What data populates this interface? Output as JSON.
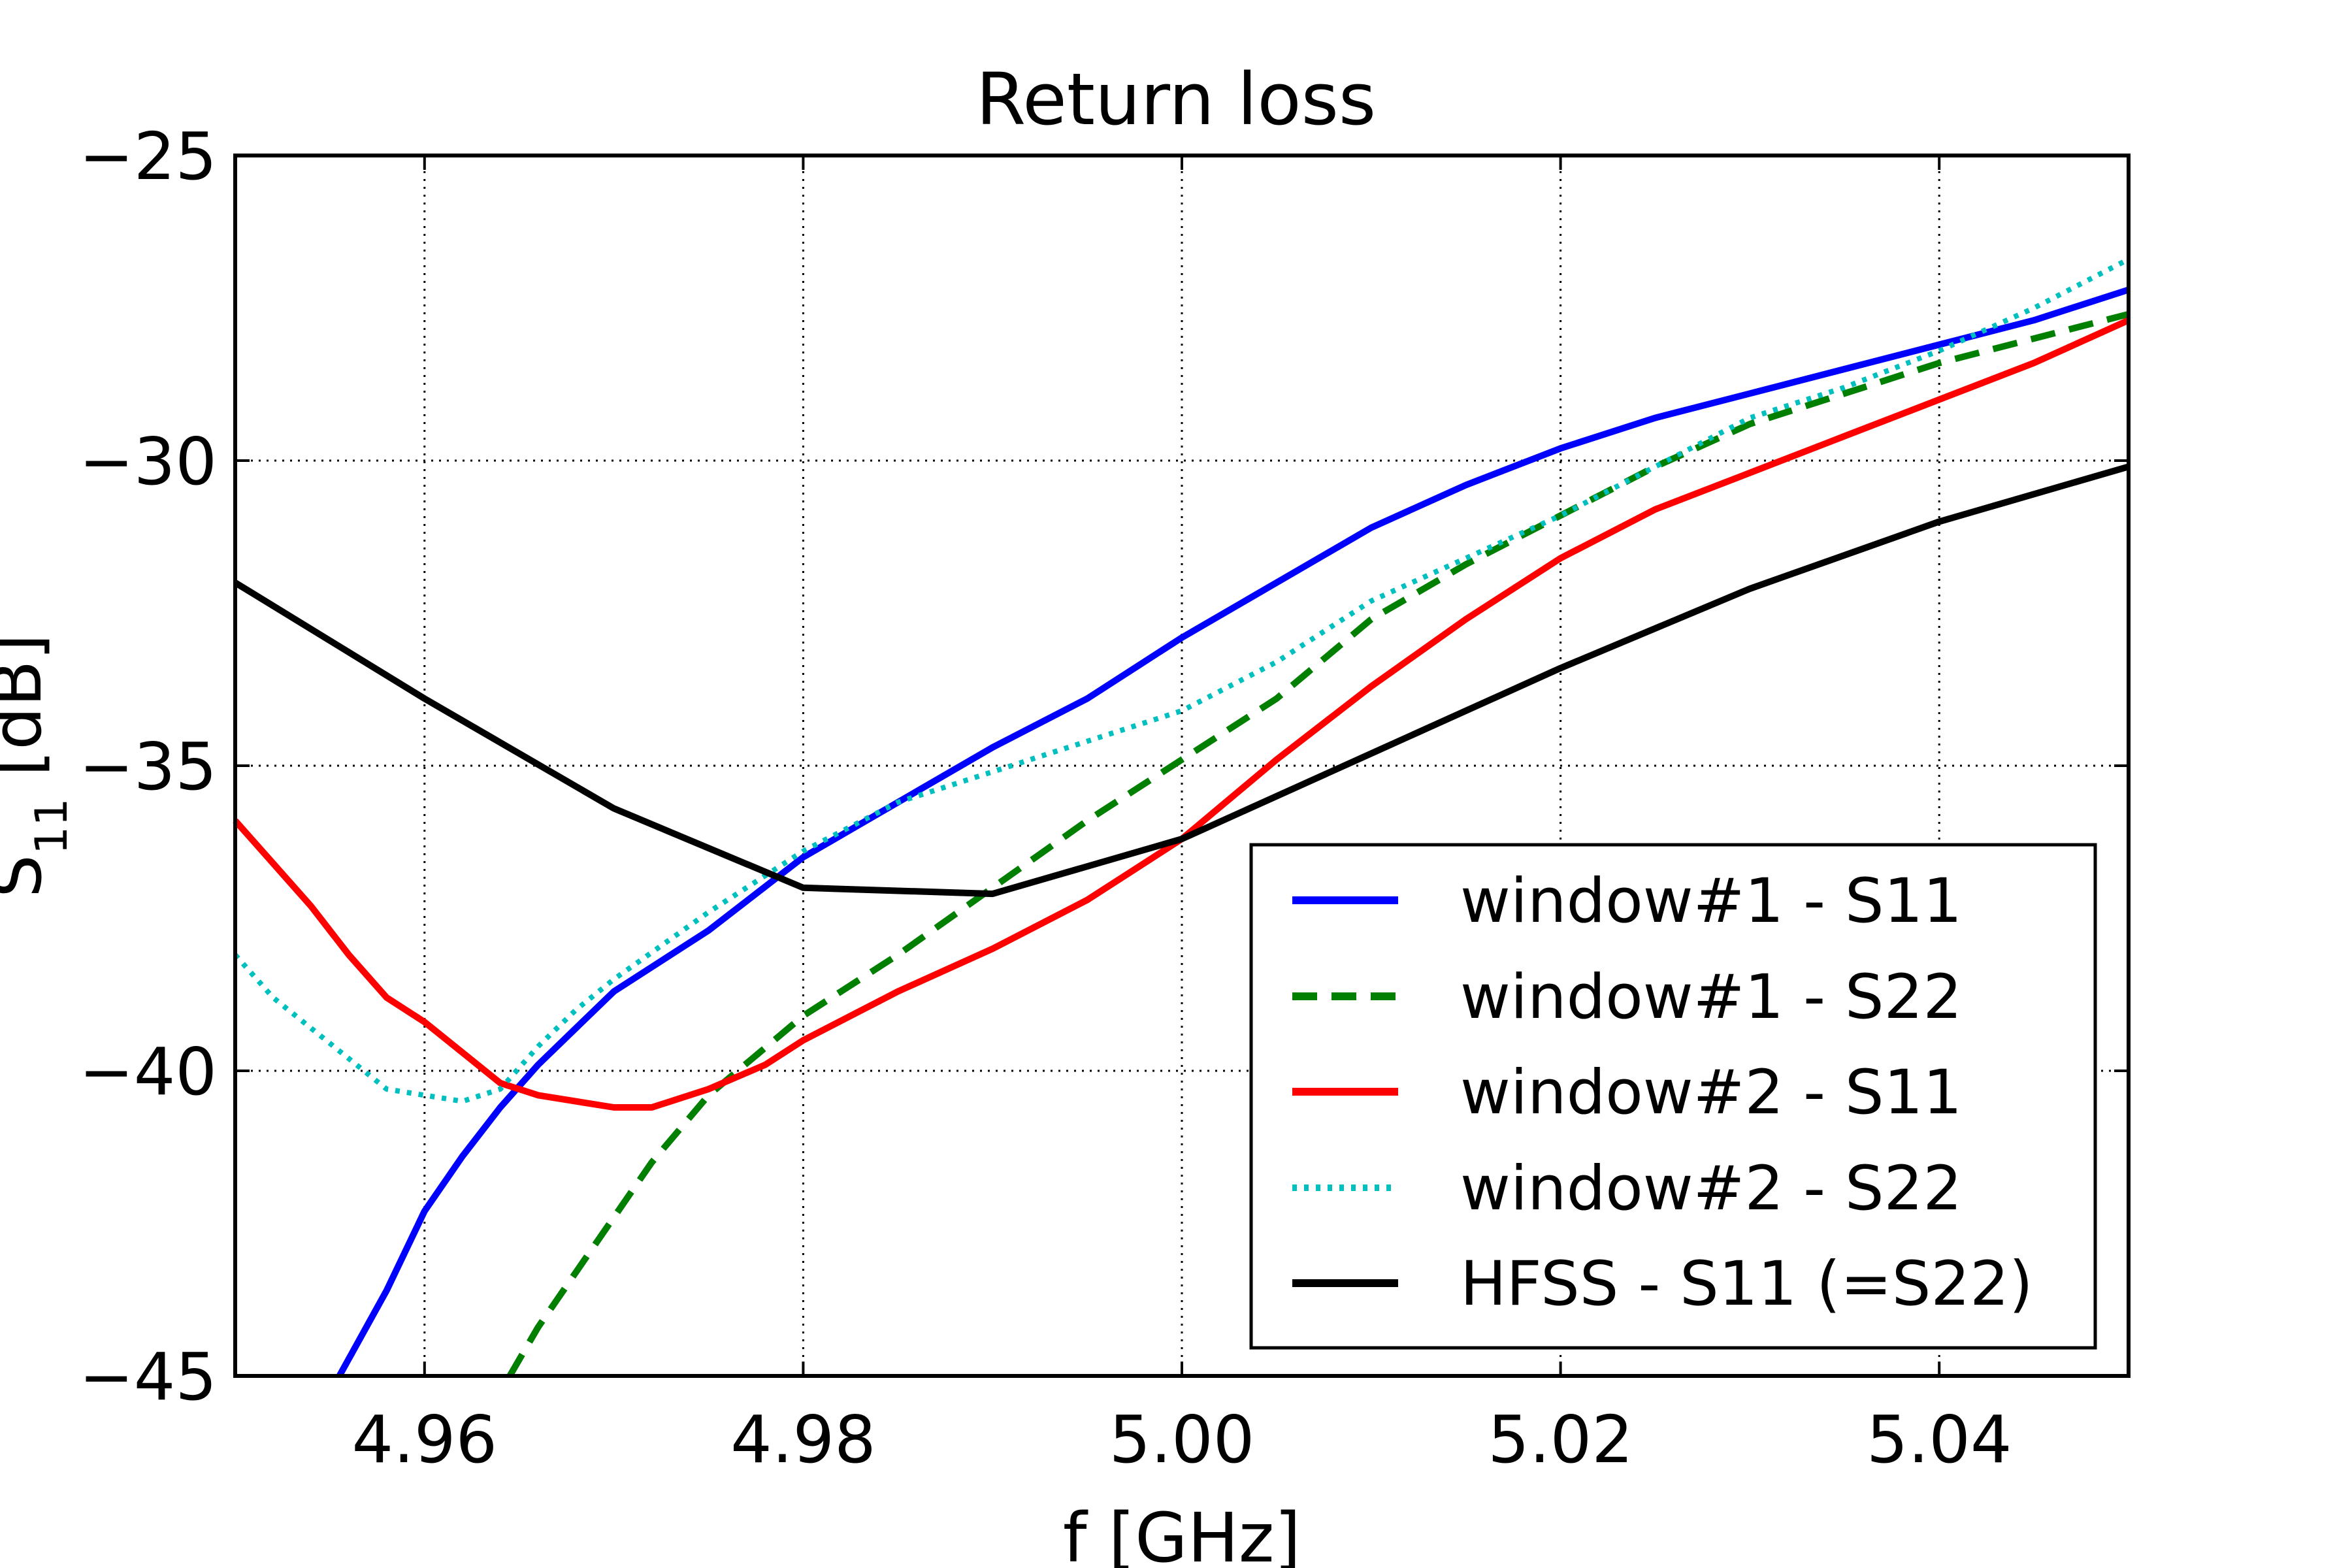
{
  "chart_data": {
    "type": "line",
    "title": "Return loss",
    "xlabel": "f [GHz]",
    "ylabel": "S",
    "ylabel_sub": "11",
    "ylabel_tail": " [dB]",
    "xlim": [
      4.95,
      5.05
    ],
    "ylim": [
      -45,
      -25
    ],
    "xticks": [
      4.96,
      4.98,
      5.0,
      5.02,
      5.04
    ],
    "xtick_labels": [
      "4.96",
      "4.98",
      "5.00",
      "5.02",
      "5.04"
    ],
    "yticks": [
      -45,
      -40,
      -35,
      -30,
      -25
    ],
    "ytick_labels": [
      "−45",
      "−40",
      "−35",
      "−30",
      "−25"
    ],
    "grid": true,
    "legend_position": "lower-right",
    "series": [
      {
        "name": "window#1 - S11",
        "color": "#0000ff",
        "style": "solid",
        "x": [
          4.9555,
          4.958,
          4.96,
          4.962,
          4.964,
          4.966,
          4.968,
          4.97,
          4.975,
          4.98,
          4.985,
          4.99,
          4.995,
          5.0,
          5.005,
          5.01,
          5.015,
          5.02,
          5.025,
          5.03,
          5.035,
          5.04,
          5.045,
          5.05
        ],
        "y": [
          -45.0,
          -43.6,
          -42.3,
          -41.4,
          -40.6,
          -39.9,
          -39.3,
          -38.7,
          -37.7,
          -36.5,
          -35.6,
          -34.7,
          -33.9,
          -32.9,
          -32.0,
          -31.1,
          -30.4,
          -29.8,
          -29.3,
          -28.9,
          -28.5,
          -28.1,
          -27.7,
          -27.2
        ]
      },
      {
        "name": "window#1 - S22",
        "color": "#007f00",
        "style": "dashed",
        "x": [
          4.9645,
          4.966,
          4.968,
          4.97,
          4.972,
          4.975,
          4.98,
          4.985,
          4.99,
          4.995,
          5.0,
          5.005,
          5.01,
          5.015,
          5.02,
          5.025,
          5.03,
          5.035,
          5.04,
          5.045,
          5.05
        ],
        "y": [
          -45.0,
          -44.2,
          -43.3,
          -42.4,
          -41.5,
          -40.4,
          -39.1,
          -38.1,
          -37.0,
          -35.9,
          -34.9,
          -33.9,
          -32.6,
          -31.7,
          -30.9,
          -30.1,
          -29.4,
          -28.9,
          -28.4,
          -28.0,
          -27.6
        ]
      },
      {
        "name": "window#2 - S11",
        "color": "#ff0000",
        "style": "solid",
        "x": [
          4.95,
          4.952,
          4.954,
          4.956,
          4.958,
          4.96,
          4.962,
          4.964,
          4.966,
          4.968,
          4.97,
          4.972,
          4.975,
          4.978,
          4.98,
          4.985,
          4.99,
          4.995,
          5.0,
          5.005,
          5.01,
          5.015,
          5.02,
          5.025,
          5.03,
          5.035,
          5.04,
          5.045,
          5.05
        ],
        "y": [
          -35.9,
          -36.6,
          -37.3,
          -38.1,
          -38.8,
          -39.2,
          -39.7,
          -40.2,
          -40.4,
          -40.5,
          -40.6,
          -40.6,
          -40.3,
          -39.9,
          -39.5,
          -38.7,
          -38.0,
          -37.2,
          -36.2,
          -34.9,
          -33.7,
          -32.6,
          -31.6,
          -30.8,
          -30.2,
          -29.6,
          -29.0,
          -28.4,
          -27.7
        ]
      },
      {
        "name": "window#2 - S22",
        "color": "#00bfbf",
        "style": "dotted",
        "x": [
          4.95,
          4.952,
          4.954,
          4.956,
          4.958,
          4.96,
          4.962,
          4.964,
          4.966,
          4.968,
          4.97,
          4.975,
          4.98,
          4.985,
          4.99,
          4.995,
          5.0,
          5.005,
          5.01,
          5.015,
          5.02,
          5.025,
          5.03,
          5.035,
          5.04,
          5.045,
          5.05
        ],
        "y": [
          -38.1,
          -38.8,
          -39.3,
          -39.8,
          -40.3,
          -40.4,
          -40.5,
          -40.3,
          -39.6,
          -39.0,
          -38.5,
          -37.4,
          -36.4,
          -35.6,
          -35.1,
          -34.6,
          -34.1,
          -33.3,
          -32.3,
          -31.6,
          -30.9,
          -30.1,
          -29.3,
          -28.8,
          -28.2,
          -27.5,
          -26.7
        ]
      },
      {
        "name": "HFSS - S11 (=S22)",
        "color": "#000000",
        "style": "solid",
        "x": [
          4.95,
          4.96,
          4.97,
          4.98,
          4.99,
          5.0,
          5.01,
          5.02,
          5.03,
          5.04,
          5.05
        ],
        "y": [
          -32.0,
          -33.9,
          -35.7,
          -37.0,
          -37.1,
          -36.2,
          -34.8,
          -33.4,
          -32.1,
          -31.0,
          -30.1
        ]
      }
    ]
  }
}
